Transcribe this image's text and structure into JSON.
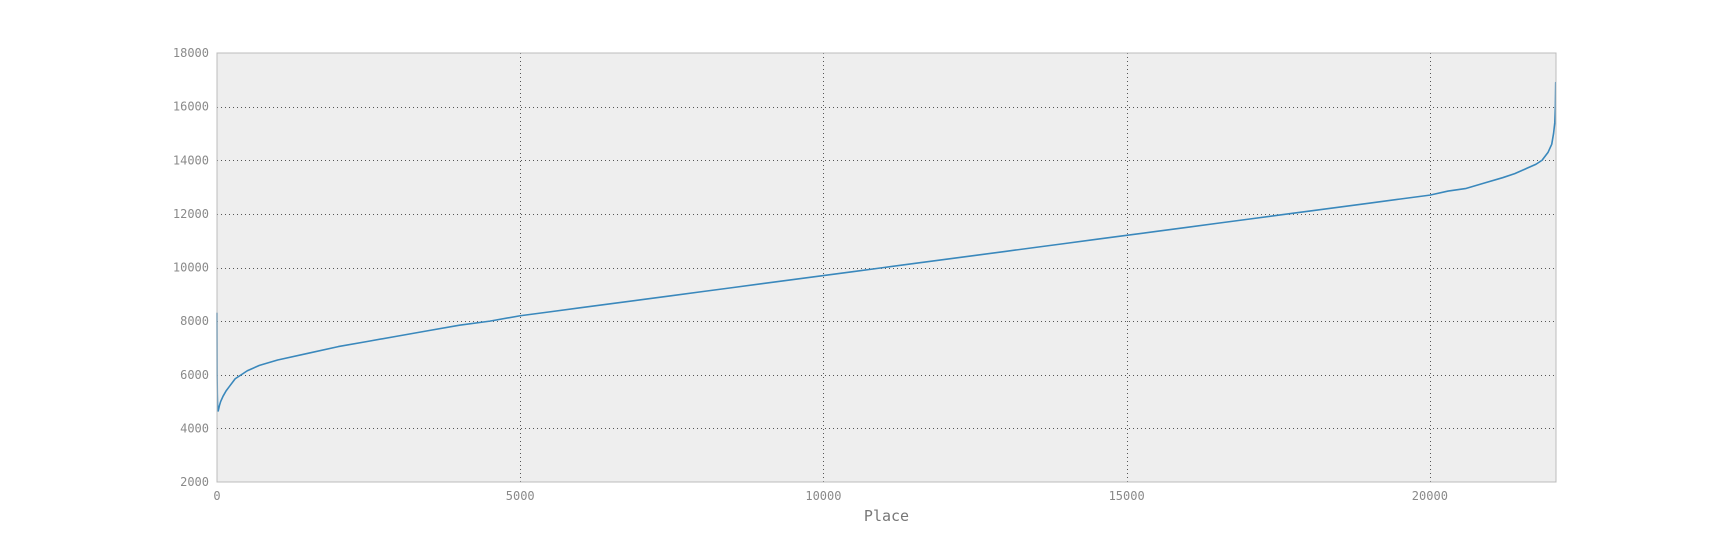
{
  "chart_data": {
    "type": "line",
    "title": "",
    "xlabel": "Place",
    "ylabel": "",
    "xlim": [
      0,
      22080
    ],
    "ylim": [
      2000,
      18000
    ],
    "xticks": [
      0,
      5000,
      10000,
      15000,
      20000
    ],
    "xtick_labels": [
      "0",
      "5000",
      "10000",
      "15000",
      "20000"
    ],
    "yticks": [
      2000,
      4000,
      6000,
      8000,
      10000,
      12000,
      14000,
      16000,
      18000
    ],
    "ytick_labels": [
      "2000",
      "4000",
      "6000",
      "8000",
      "10000",
      "12000",
      "14000",
      "16000",
      "18000"
    ],
    "grid": true,
    "grid_style": "dotted",
    "legend": "none",
    "colors": {
      "line": "#3a88bc",
      "plot_background": "#eeeeee",
      "axes_border": "#bcbcbc",
      "grid": "#555555"
    },
    "series": [
      {
        "x": [
          0,
          2,
          5,
          10,
          20,
          40,
          60,
          100,
          150,
          200,
          300,
          400,
          500,
          700,
          1000,
          1500,
          2000,
          2500,
          3000,
          3500,
          4000,
          4500,
          5000,
          5500,
          6000,
          6500,
          7000,
          7500,
          8000,
          8500,
          9000,
          9500,
          10000,
          10500,
          11000,
          11500,
          12000,
          12500,
          13000,
          13500,
          14000,
          14500,
          15000,
          15500,
          16000,
          16500,
          17000,
          17500,
          18000,
          18500,
          19000,
          19500,
          20000,
          20300,
          20600,
          20900,
          21200,
          21400,
          21600,
          21750,
          21850,
          21950,
          22010,
          22040,
          22060,
          22070,
          22075
        ],
        "y": [
          8300,
          6000,
          5300,
          4800,
          4650,
          4850,
          5000,
          5200,
          5400,
          5550,
          5850,
          6000,
          6150,
          6350,
          6550,
          6800,
          7050,
          7250,
          7450,
          7650,
          7850,
          8000,
          8200,
          8350,
          8500,
          8650,
          8800,
          8950,
          9100,
          9250,
          9400,
          9550,
          9700,
          9850,
          10000,
          10150,
          10300,
          10450,
          10600,
          10750,
          10900,
          11050,
          11200,
          11350,
          11500,
          11650,
          11800,
          11950,
          12100,
          12250,
          12400,
          12550,
          12700,
          12850,
          12950,
          13150,
          13350,
          13500,
          13700,
          13850,
          14000,
          14300,
          14600,
          15000,
          15400,
          16000,
          16900
        ]
      }
    ]
  }
}
